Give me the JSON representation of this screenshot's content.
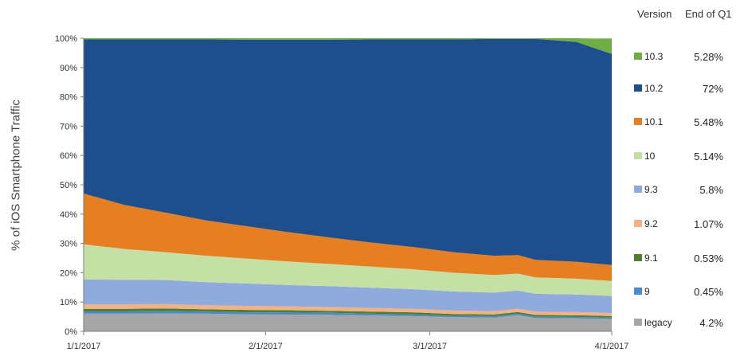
{
  "chart_data": {
    "type": "area",
    "stacked": true,
    "ylabel": "% of iOS Smartphone Traffic",
    "xlabel": "",
    "ylim": [
      0,
      100
    ],
    "yticks": [
      "0%",
      "10%",
      "20%",
      "30%",
      "40%",
      "50%",
      "60%",
      "70%",
      "80%",
      "90%",
      "100%"
    ],
    "xticks": [
      "1/1/2017",
      "2/1/2017",
      "3/1/2017",
      "4/1/2017"
    ],
    "x": [
      "2017-01-01",
      "2017-01-08",
      "2017-01-15",
      "2017-01-22",
      "2017-01-29",
      "2017-02-05",
      "2017-02-12",
      "2017-02-19",
      "2017-02-26",
      "2017-03-05",
      "2017-03-12",
      "2017-03-16",
      "2017-03-19",
      "2017-03-26",
      "2017-03-29",
      "2017-04-01"
    ],
    "series": [
      {
        "name": "legacy",
        "color": "#a6a6a6",
        "values": [
          6.0,
          6.0,
          6.1,
          6.0,
          5.8,
          5.7,
          5.6,
          5.4,
          5.2,
          4.8,
          4.7,
          5.5,
          4.5,
          4.4,
          4.3,
          4.2
        ]
      },
      {
        "name": "9",
        "color": "#4a8ad4",
        "values": [
          0.8,
          0.8,
          0.8,
          0.7,
          0.7,
          0.7,
          0.7,
          0.6,
          0.6,
          0.5,
          0.5,
          0.5,
          0.5,
          0.5,
          0.5,
          0.45
        ]
      },
      {
        "name": "9.1",
        "color": "#4e7f2e",
        "values": [
          0.9,
          0.9,
          0.9,
          0.8,
          0.8,
          0.8,
          0.7,
          0.7,
          0.7,
          0.6,
          0.6,
          0.6,
          0.6,
          0.55,
          0.55,
          0.53
        ]
      },
      {
        "name": "9.2",
        "color": "#f4b183",
        "values": [
          1.5,
          1.5,
          1.5,
          1.4,
          1.4,
          1.3,
          1.3,
          1.3,
          1.2,
          1.2,
          1.1,
          1.1,
          1.1,
          1.1,
          1.1,
          1.07
        ]
      },
      {
        "name": "9.3",
        "color": "#8faadc",
        "values": [
          8.5,
          8.4,
          8.2,
          7.9,
          7.6,
          7.3,
          7.1,
          6.9,
          6.7,
          6.5,
          6.3,
          6.2,
          6.1,
          6.0,
          5.9,
          5.8
        ]
      },
      {
        "name": "10",
        "color": "#c5e0a5",
        "values": [
          12.0,
          10.5,
          9.5,
          9.0,
          8.5,
          8.0,
          7.6,
          7.2,
          6.8,
          6.4,
          6.0,
          5.8,
          5.6,
          5.4,
          5.2,
          5.14
        ]
      },
      {
        "name": "10.1",
        "color": "#e67e22",
        "values": [
          17.3,
          15.0,
          13.5,
          12.0,
          11.0,
          10.0,
          9.0,
          8.2,
          7.6,
          7.0,
          6.6,
          6.3,
          6.0,
          5.8,
          5.6,
          5.48
        ]
      },
      {
        "name": "10.2",
        "color": "#1f4e8c",
        "values": [
          52.6,
          56.5,
          59.1,
          61.8,
          63.7,
          65.7,
          67.5,
          69.3,
          70.8,
          72.6,
          74.0,
          73.8,
          75.4,
          75.0,
          73.5,
          72.0
        ]
      },
      {
        "name": "10.3",
        "color": "#70ad47",
        "values": [
          0.4,
          0.4,
          0.4,
          0.4,
          0.5,
          0.5,
          0.5,
          0.4,
          0.4,
          0.4,
          0.2,
          0.2,
          0.2,
          1.25,
          3.25,
          5.28
        ]
      }
    ],
    "legend": {
      "placement": "right",
      "header_version": "Version",
      "header_value": "End of Q1",
      "order": [
        "10.3",
        "10.2",
        "10.1",
        "10",
        "9.3",
        "9.2",
        "9.1",
        "9",
        "legacy"
      ],
      "values": {
        "10.3": "5.28%",
        "10.2": "72%",
        "10.1": "5.48%",
        "10": "5.14%",
        "9.3": "5.8%",
        "9.2": "1.07%",
        "9.1": "0.53%",
        "9": "0.45%",
        "legacy": "4.2%"
      }
    },
    "grid": false
  }
}
